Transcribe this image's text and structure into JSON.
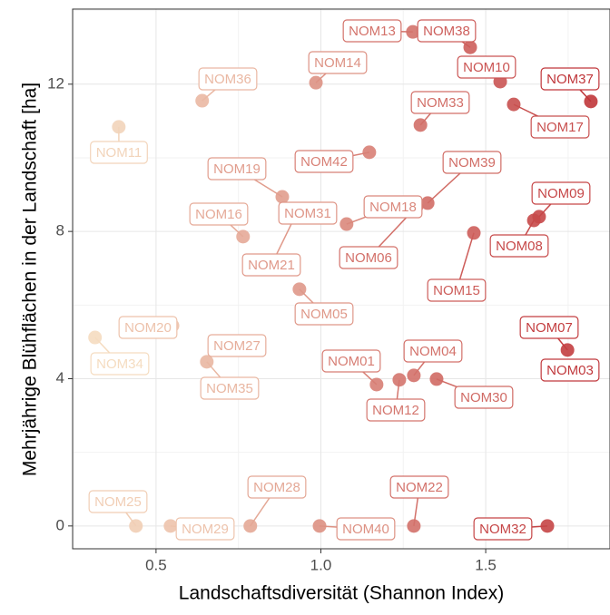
{
  "chart_data": {
    "type": "scatter",
    "xlabel": "Landschaftsdiversität (Shannon Index)",
    "ylabel": "Mehrjährige Blühflächen in der Landschaft [ha]",
    "labels": [
      "NOM11",
      "NOM36",
      "NOM14",
      "NOM13",
      "NOM38",
      "NOM10",
      "NOM37",
      "NOM17",
      "NOM33",
      "NOM42",
      "NOM39",
      "NOM06",
      "NOM18",
      "NOM09",
      "NOM08",
      "NOM19",
      "NOM31",
      "NOM21",
      "NOM16",
      "NOM15",
      "NOM05",
      "NOM20",
      "NOM34",
      "NOM27",
      "NOM35",
      "NOM07",
      "NOM03",
      "NOM01",
      "NOM12",
      "NOM04",
      "NOM30",
      "NOM25",
      "NOM29",
      "NOM28",
      "NOM40",
      "NOM22",
      "NOM32"
    ],
    "x": [
      0.387,
      0.64,
      0.985,
      1.279,
      1.453,
      1.544,
      1.819,
      1.585,
      1.302,
      1.147,
      1.324,
      1.29,
      1.078,
      1.662,
      1.646,
      0.883,
      0.946,
      0.924,
      0.764,
      1.464,
      0.935,
      0.55,
      0.315,
      0.742,
      0.654,
      1.748,
      1.789,
      1.169,
      1.238,
      1.282,
      1.351,
      0.439,
      0.544,
      0.786,
      0.996,
      1.282,
      1.687
    ],
    "values": [
      10.84,
      11.55,
      12.04,
      13.42,
      13.0,
      12.07,
      11.53,
      11.45,
      10.89,
      10.15,
      8.77,
      8.67,
      8.2,
      8.4,
      8.3,
      8.94,
      8.55,
      8.45,
      7.86,
      7.96,
      6.43,
      5.44,
      5.12,
      4.98,
      4.46,
      4.78,
      4.24,
      3.84,
      3.97,
      4.09,
      3.99,
      0,
      0,
      0,
      0,
      0,
      0
    ],
    "xlim": [
      0.247,
      1.877
    ],
    "ylim": [
      -0.62,
      14.04
    ],
    "xticks": [
      0.5,
      {
        "value": 1.0,
        "label": "1.0"
      },
      1.5
    ],
    "yticks": [
      0,
      4,
      8,
      12
    ],
    "grid": true,
    "color_scale": [
      "#f5dcc0",
      "#c0363a"
    ]
  }
}
